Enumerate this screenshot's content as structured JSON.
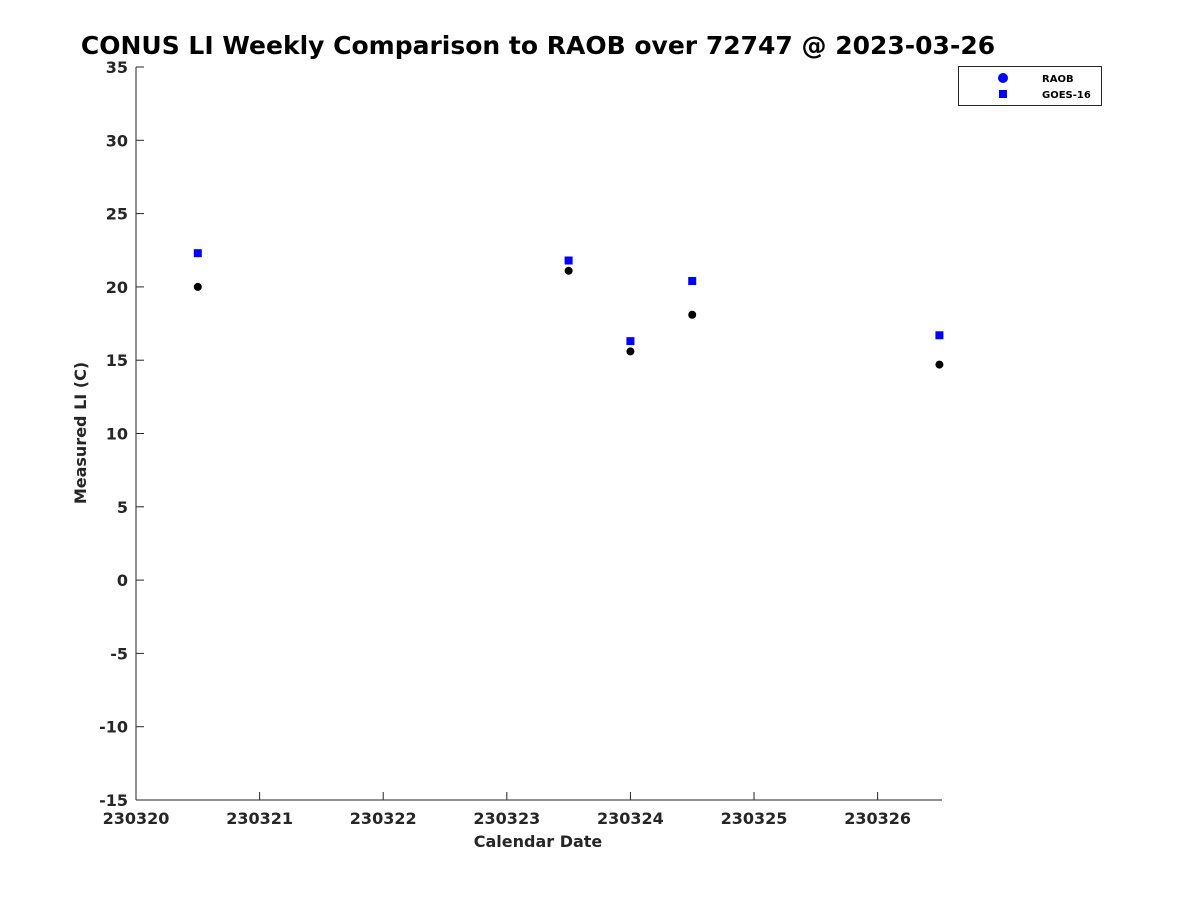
{
  "chart_data": {
    "type": "scatter",
    "title": "CONUS LI Weekly Comparison to RAOB over 72747 @ 2023-03-26",
    "xlabel": "Calendar Date",
    "ylabel": "Measured LI (C)",
    "x_tick_labels": [
      "230320",
      "230321",
      "230322",
      "230323",
      "230324",
      "230325",
      "230326"
    ],
    "y_tick_labels": [
      "-15",
      "-10",
      "-5",
      "0",
      "5",
      "10",
      "15",
      "20",
      "25",
      "30",
      "35"
    ],
    "x_ticks": [
      "2023-03-20",
      "2023-03-21",
      "2023-03-22",
      "2023-03-23",
      "2023-03-24",
      "2023-03-25",
      "2023-03-26"
    ],
    "xlim": [
      "2023-03-20T00:00",
      "2023-03-26T12:30"
    ],
    "y_ticks": [
      -15,
      -10,
      -5,
      0,
      5,
      10,
      15,
      20,
      25,
      30,
      35
    ],
    "ylim": [
      -15,
      35
    ],
    "grid": false,
    "legend_position": "top-right",
    "series": [
      {
        "name": "RAOB",
        "marker": "circle",
        "color": "#000000",
        "legend_color": "#0000ff",
        "points": [
          {
            "x": "2023-03-20T12:00",
            "y": 20.0
          },
          {
            "x": "2023-03-23T12:00",
            "y": 21.1
          },
          {
            "x": "2023-03-24T00:00",
            "y": 15.6
          },
          {
            "x": "2023-03-24T12:00",
            "y": 18.1
          },
          {
            "x": "2023-03-26T12:00",
            "y": 14.7
          }
        ]
      },
      {
        "name": "GOES-16",
        "marker": "square",
        "color": "#0000ff",
        "legend_color": "#0000ff",
        "points": [
          {
            "x": "2023-03-20T12:00",
            "y": 22.3
          },
          {
            "x": "2023-03-23T12:00",
            "y": 21.8
          },
          {
            "x": "2023-03-24T00:00",
            "y": 16.3
          },
          {
            "x": "2023-03-24T12:00",
            "y": 20.4
          },
          {
            "x": "2023-03-26T12:00",
            "y": 16.7
          }
        ]
      }
    ]
  }
}
